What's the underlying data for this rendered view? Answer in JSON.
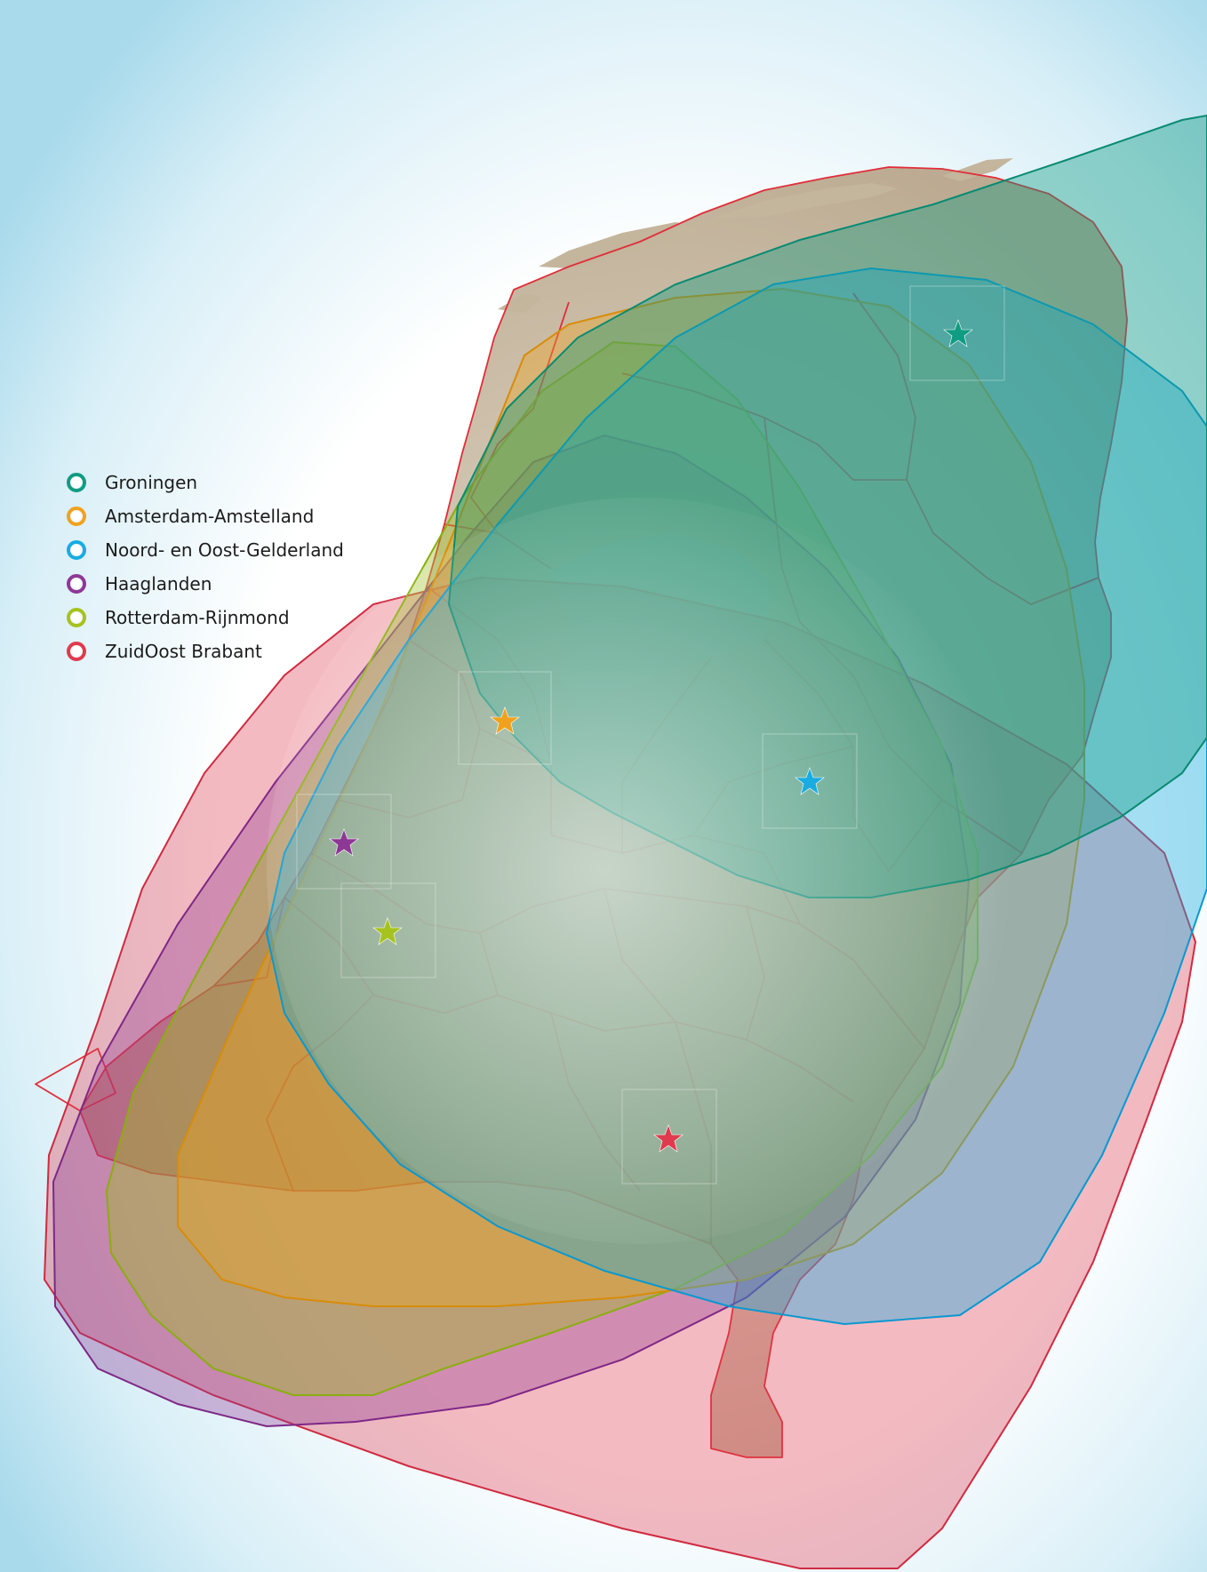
{
  "legend": {
    "items": [
      {
        "label": "Groningen",
        "color": "#109c82",
        "icon": "ring-dot"
      },
      {
        "label": "Amsterdam-Amstelland",
        "color": "#f0a21e",
        "icon": "ring-dot"
      },
      {
        "label": "Noord- en Oost-Gelderland",
        "color": "#18ace0",
        "icon": "ring-dot"
      },
      {
        "label": "Haaglanden",
        "color": "#8e3896",
        "icon": "ring-dot"
      },
      {
        "label": "Rotterdam-Rijnmond",
        "color": "#a6c21e",
        "icon": "ring-dot"
      },
      {
        "label": "ZuidOost Brabant",
        "color": "#e03a4e",
        "icon": "ring-dot"
      }
    ]
  },
  "map": {
    "base_color": "#cdbfa9",
    "border_color": "#e02e3a",
    "sea_color": "#bfe3f1",
    "markers": [
      "star-icon",
      "star-icon",
      "star-icon",
      "star-icon",
      "star-icon",
      "star-icon"
    ]
  }
}
